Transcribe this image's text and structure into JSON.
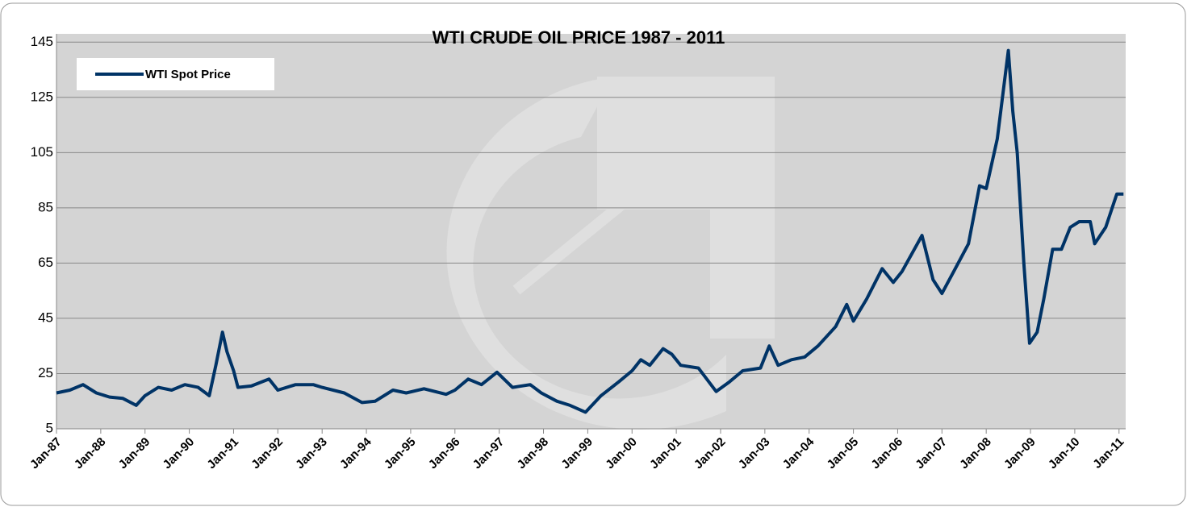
{
  "chart_data": {
    "type": "line",
    "title": "WTI CRUDE OIL PRICE 1987 - 2011",
    "x": [
      1987.0,
      1987.3,
      1987.6,
      1987.9,
      1988.2,
      1988.5,
      1988.8,
      1989.0,
      1989.3,
      1989.6,
      1989.9,
      1990.2,
      1990.45,
      1990.6,
      1990.75,
      1990.85,
      1991.0,
      1991.1,
      1991.4,
      1991.8,
      1992.0,
      1992.4,
      1992.8,
      1993.0,
      1993.5,
      1993.9,
      1994.2,
      1994.6,
      1994.9,
      1995.3,
      1995.8,
      1996.0,
      1996.3,
      1996.6,
      1996.95,
      1997.3,
      1997.7,
      1997.95,
      1998.3,
      1998.6,
      1998.95,
      1999.3,
      1999.7,
      2000.0,
      2000.2,
      2000.4,
      2000.7,
      2000.9,
      2001.1,
      2001.5,
      2001.9,
      2002.2,
      2002.5,
      2002.9,
      2003.1,
      2003.3,
      2003.6,
      2003.9,
      2004.2,
      2004.6,
      2004.85,
      2005.0,
      2005.3,
      2005.65,
      2005.9,
      2006.1,
      2006.55,
      2006.8,
      2007.0,
      2007.3,
      2007.6,
      2007.85,
      2008.0,
      2008.25,
      2008.5,
      2008.6,
      2008.7,
      2008.85,
      2008.98,
      2009.15,
      2009.3,
      2009.5,
      2009.7,
      2009.9,
      2010.1,
      2010.35,
      2010.45,
      2010.7,
      2010.95,
      2011.1
    ],
    "series": [
      {
        "name": "WTI Spot Price",
        "color": "#003366",
        "values": [
          18,
          19,
          21,
          18,
          16.5,
          16,
          13.5,
          17,
          20,
          19,
          21,
          20,
          17,
          28,
          40,
          33,
          26,
          20,
          20.5,
          23,
          19,
          21,
          21,
          20,
          18,
          14.5,
          15,
          19,
          18,
          19.5,
          17.5,
          19,
          23,
          21,
          25.5,
          20,
          21,
          18,
          15,
          13.5,
          11,
          17,
          22,
          26,
          30,
          28,
          34,
          32,
          28,
          27,
          18.5,
          22,
          26,
          27,
          35,
          28,
          30,
          31,
          35,
          42,
          50,
          44,
          52,
          63,
          58,
          62,
          75,
          59,
          54,
          63,
          72,
          93,
          92,
          110,
          142,
          120,
          105,
          65,
          36,
          40,
          52,
          70,
          70,
          78,
          80,
          80,
          72,
          78,
          90,
          90
        ]
      }
    ],
    "xlim": [
      1987,
      2011.15
    ],
    "xticks": [
      {
        "value": 1987,
        "label": "Jan-87"
      },
      {
        "value": 1988,
        "label": "Jan-88"
      },
      {
        "value": 1989,
        "label": "Jan-89"
      },
      {
        "value": 1990,
        "label": "Jan-90"
      },
      {
        "value": 1991,
        "label": "Jan-91"
      },
      {
        "value": 1992,
        "label": "Jan-92"
      },
      {
        "value": 1993,
        "label": "Jan-93"
      },
      {
        "value": 1994,
        "label": "Jan-94"
      },
      {
        "value": 1995,
        "label": "Jan-95"
      },
      {
        "value": 1996,
        "label": "Jan-96"
      },
      {
        "value": 1997,
        "label": "Jan-97"
      },
      {
        "value": 1998,
        "label": "Jan-98"
      },
      {
        "value": 1999,
        "label": "Jan-99"
      },
      {
        "value": 2000,
        "label": "Jan-00"
      },
      {
        "value": 2001,
        "label": "Jan-01"
      },
      {
        "value": 2002,
        "label": "Jan-02"
      },
      {
        "value": 2003,
        "label": "Jan-03"
      },
      {
        "value": 2004,
        "label": "Jan-04"
      },
      {
        "value": 2005,
        "label": "Jan-05"
      },
      {
        "value": 2006,
        "label": "Jan-06"
      },
      {
        "value": 2007,
        "label": "Jan-07"
      },
      {
        "value": 2008,
        "label": "Jan-08"
      },
      {
        "value": 2009,
        "label": "Jan-09"
      },
      {
        "value": 2010,
        "label": "Jan-10"
      },
      {
        "value": 2011,
        "label": "Jan-11"
      }
    ],
    "ylim": [
      5,
      148
    ],
    "yticks": [
      5,
      25,
      45,
      65,
      85,
      105,
      125,
      145
    ],
    "grid": true
  }
}
